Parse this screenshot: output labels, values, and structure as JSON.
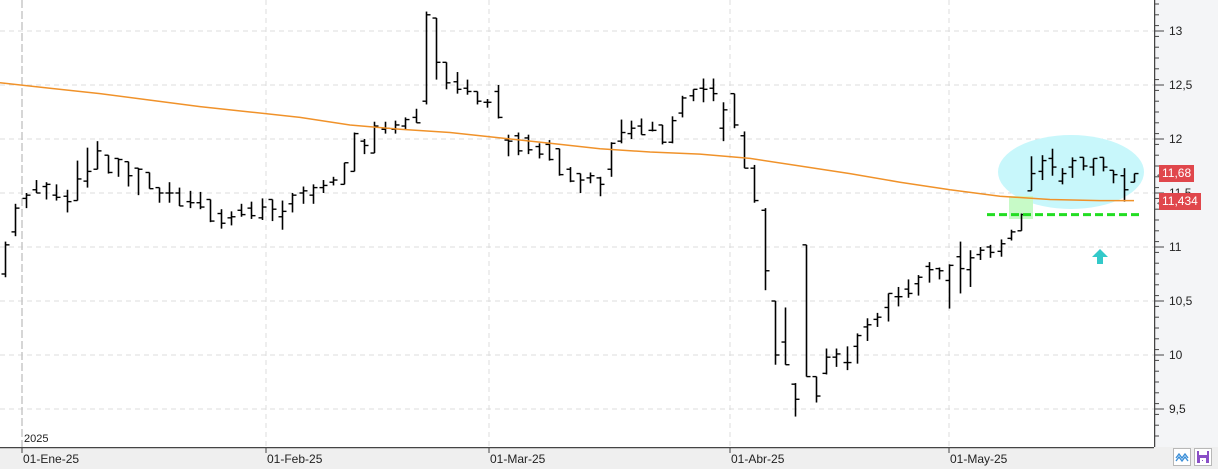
{
  "chart_data": {
    "type": "ohlc",
    "title": "",
    "xlabel": "",
    "ylabel": "",
    "ylim": [
      9.15,
      13.29
    ],
    "y_ticks": [
      "13",
      "12,5",
      "12",
      "11,5",
      "11",
      "10,5",
      "10",
      "9,5"
    ],
    "y_tick_values": [
      13,
      12.5,
      12,
      11.5,
      11,
      10.5,
      10,
      9.5
    ],
    "x_tick_labels": [
      "01-Ene-25",
      "01-Feb-25",
      "01-Mar-25",
      "01-Abr-25",
      "01-May-25"
    ],
    "year_label": "2025",
    "grid": true,
    "last_price_label": "11,68",
    "moving_average_label": "11,434",
    "support_line_level": 11.3,
    "series": [
      {
        "name": "price",
        "bars": [
          {
            "o": 10.75,
            "h": 11.05,
            "l": 10.72,
            "c": 11.02
          },
          {
            "o": 11.14,
            "h": 11.4,
            "l": 11.1,
            "c": 11.36
          },
          {
            "o": 11.45,
            "h": 11.5,
            "l": 11.36,
            "c": 11.48
          },
          {
            "o": 11.53,
            "h": 11.62,
            "l": 11.5,
            "c": 11.5
          },
          {
            "o": 11.56,
            "h": 11.6,
            "l": 11.44,
            "c": 11.58
          },
          {
            "o": 11.48,
            "h": 11.58,
            "l": 11.43,
            "c": 11.46
          },
          {
            "o": 11.47,
            "h": 11.53,
            "l": 11.32,
            "c": 11.42
          },
          {
            "o": 11.43,
            "h": 11.8,
            "l": 11.44,
            "c": 11.63
          },
          {
            "o": 11.61,
            "h": 11.92,
            "l": 11.55,
            "c": 11.7
          },
          {
            "o": 11.72,
            "h": 11.98,
            "l": 11.75,
            "c": 11.89
          },
          {
            "o": 11.85,
            "h": 11.85,
            "l": 11.68,
            "c": 11.69
          },
          {
            "o": 11.82,
            "h": 11.82,
            "l": 11.65,
            "c": 11.81
          },
          {
            "o": 11.79,
            "h": 11.79,
            "l": 11.56,
            "c": 11.66
          },
          {
            "o": 11.73,
            "h": 11.73,
            "l": 11.48,
            "c": 11.72
          },
          {
            "o": 11.69,
            "h": 11.69,
            "l": 11.6,
            "c": 11.54
          },
          {
            "o": 11.55,
            "h": 11.55,
            "l": 11.41,
            "c": 11.5
          },
          {
            "o": 11.5,
            "h": 11.6,
            "l": 11.41,
            "c": 11.5
          },
          {
            "o": 11.5,
            "h": 11.55,
            "l": 11.38,
            "c": 11.38
          },
          {
            "o": 11.42,
            "h": 11.52,
            "l": 11.36,
            "c": 11.41
          },
          {
            "o": 11.41,
            "h": 11.51,
            "l": 11.35,
            "c": 11.37
          },
          {
            "o": 11.44,
            "h": 11.44,
            "l": 11.23,
            "c": 11.24
          },
          {
            "o": 11.31,
            "h": 11.35,
            "l": 11.17,
            "c": 11.22
          },
          {
            "o": 11.27,
            "h": 11.33,
            "l": 11.2,
            "c": 11.28
          },
          {
            "o": 11.34,
            "h": 11.4,
            "l": 11.28,
            "c": 11.3
          },
          {
            "o": 11.36,
            "h": 11.42,
            "l": 11.26,
            "c": 11.29
          },
          {
            "o": 11.27,
            "h": 11.45,
            "l": 11.25,
            "c": 11.37
          },
          {
            "o": 11.44,
            "h": 11.43,
            "l": 11.24,
            "c": 11.35
          },
          {
            "o": 11.28,
            "h": 11.43,
            "l": 11.16,
            "c": 11.33
          },
          {
            "o": 11.4,
            "h": 11.5,
            "l": 11.32,
            "c": 11.48
          },
          {
            "o": 11.5,
            "h": 11.56,
            "l": 11.4,
            "c": 11.52
          },
          {
            "o": 11.48,
            "h": 11.58,
            "l": 11.4,
            "c": 11.55
          },
          {
            "o": 11.55,
            "h": 11.62,
            "l": 11.5,
            "c": 11.57
          },
          {
            "o": 11.6,
            "h": 11.65,
            "l": 11.57,
            "c": 11.62
          },
          {
            "o": 11.58,
            "h": 11.78,
            "l": 11.6,
            "c": 11.78
          },
          {
            "o": 11.7,
            "h": 12.06,
            "l": 11.77,
            "c": 12.05
          },
          {
            "o": 11.98,
            "h": 12.0,
            "l": 11.86,
            "c": 11.94
          },
          {
            "o": 11.87,
            "h": 12.16,
            "l": 11.88,
            "c": 12.12
          },
          {
            "o": 12.09,
            "h": 12.16,
            "l": 12.05,
            "c": 12.1
          },
          {
            "o": 12.09,
            "h": 12.17,
            "l": 12.05,
            "c": 12.13
          },
          {
            "o": 12.12,
            "h": 12.2,
            "l": 12.09,
            "c": 12.18
          },
          {
            "o": 12.2,
            "h": 12.2,
            "l": 12.28,
            "c": 12.15
          },
          {
            "o": 12.35,
            "h": 13.18,
            "l": 12.32,
            "c": 13.15
          },
          {
            "o": 13.12,
            "h": 13.12,
            "l": 12.55,
            "c": 12.71
          },
          {
            "o": 12.71,
            "h": 12.71,
            "l": 12.46,
            "c": 12.52
          },
          {
            "o": 12.53,
            "h": 12.62,
            "l": 12.42,
            "c": 12.46
          },
          {
            "o": 12.47,
            "h": 12.55,
            "l": 12.41,
            "c": 12.44
          },
          {
            "o": 12.44,
            "h": 12.44,
            "l": 12.32,
            "c": 12.35
          },
          {
            "o": 12.34,
            "h": 12.37,
            "l": 12.29,
            "c": 12.34
          },
          {
            "o": 12.44,
            "h": 12.5,
            "l": 12.19,
            "c": 12.2
          },
          {
            "o": 11.99,
            "h": 12.04,
            "l": 11.84,
            "c": 11.98
          },
          {
            "o": 12.03,
            "h": 12.06,
            "l": 11.85,
            "c": 11.89
          },
          {
            "o": 12.01,
            "h": 12.04,
            "l": 11.86,
            "c": 11.9
          },
          {
            "o": 11.93,
            "h": 11.96,
            "l": 11.82,
            "c": 11.86
          },
          {
            "o": 11.95,
            "h": 11.99,
            "l": 11.8,
            "c": 11.81
          },
          {
            "o": 11.91,
            "h": 11.91,
            "l": 11.66,
            "c": 11.67
          },
          {
            "o": 11.72,
            "h": 11.74,
            "l": 11.6,
            "c": 11.61
          },
          {
            "o": 11.68,
            "h": 11.68,
            "l": 11.5,
            "c": 11.62
          },
          {
            "o": 11.64,
            "h": 11.69,
            "l": 11.59,
            "c": 11.66
          },
          {
            "o": 11.64,
            "h": 11.65,
            "l": 11.47,
            "c": 11.58
          },
          {
            "o": 11.72,
            "h": 11.97,
            "l": 11.65,
            "c": 11.96
          },
          {
            "o": 11.98,
            "h": 12.18,
            "l": 11.96,
            "c": 12.06
          },
          {
            "o": 12.05,
            "h": 12.17,
            "l": 12.0,
            "c": 12.1
          },
          {
            "o": 12.12,
            "h": 12.19,
            "l": 12.05,
            "c": 12.04
          },
          {
            "o": 12.08,
            "h": 12.16,
            "l": 12.07,
            "c": 12.08
          },
          {
            "o": 12.13,
            "h": 12.13,
            "l": 11.95,
            "c": 11.97
          },
          {
            "o": 11.97,
            "h": 12.21,
            "l": 11.96,
            "c": 12.17
          },
          {
            "o": 12.24,
            "h": 12.4,
            "l": 12.2,
            "c": 12.38
          },
          {
            "o": 12.4,
            "h": 12.45,
            "l": 12.35,
            "c": 12.46
          },
          {
            "o": 12.47,
            "h": 12.56,
            "l": 12.34,
            "c": 12.46
          },
          {
            "o": 12.47,
            "h": 12.56,
            "l": 12.35,
            "c": 12.42
          },
          {
            "o": 12.1,
            "h": 12.34,
            "l": 11.98,
            "c": 12.27
          },
          {
            "o": 12.42,
            "h": 12.42,
            "l": 12.1,
            "c": 12.13
          },
          {
            "o": 12.03,
            "h": 12.07,
            "l": 11.75,
            "c": 11.73
          },
          {
            "o": 11.73,
            "h": 11.76,
            "l": 11.41,
            "c": 11.43
          },
          {
            "o": 11.34,
            "h": 11.36,
            "l": 10.6,
            "c": 10.78
          },
          {
            "o": 10.5,
            "h": 10.5,
            "l": 9.91,
            "c": 10.0
          },
          {
            "o": 10.12,
            "h": 10.44,
            "l": 9.91,
            "c": 9.91
          },
          {
            "o": 9.73,
            "h": 9.74,
            "l": 9.43,
            "c": 9.59
          },
          {
            "o": 11.02,
            "h": 11.02,
            "l": 9.8,
            "c": 9.8
          },
          {
            "o": 9.8,
            "h": 9.8,
            "l": 9.56,
            "c": 9.62
          },
          {
            "o": 9.83,
            "h": 10.06,
            "l": 9.82,
            "c": 9.98
          },
          {
            "o": 9.98,
            "h": 10.06,
            "l": 9.89,
            "c": 10.01
          },
          {
            "o": 9.93,
            "h": 10.08,
            "l": 9.86,
            "c": 9.93
          },
          {
            "o": 10.08,
            "h": 10.2,
            "l": 9.92,
            "c": 10.18
          },
          {
            "o": 10.26,
            "h": 10.34,
            "l": 10.13,
            "c": 10.28
          },
          {
            "o": 10.33,
            "h": 10.39,
            "l": 10.26,
            "c": 10.35
          },
          {
            "o": 10.44,
            "h": 10.49,
            "l": 10.31,
            "c": 10.57
          },
          {
            "o": 10.54,
            "h": 10.63,
            "l": 10.45,
            "c": 10.54
          },
          {
            "o": 10.61,
            "h": 10.7,
            "l": 10.53,
            "c": 10.57
          },
          {
            "o": 10.66,
            "h": 10.74,
            "l": 10.55,
            "c": 10.72
          },
          {
            "o": 10.82,
            "h": 10.86,
            "l": 10.67,
            "c": 10.79
          },
          {
            "o": 10.8,
            "h": 10.81,
            "l": 10.7,
            "c": 10.78
          },
          {
            "o": 10.69,
            "h": 10.84,
            "l": 10.43,
            "c": 10.83
          },
          {
            "o": 10.91,
            "h": 11.05,
            "l": 10.57,
            "c": 10.8
          },
          {
            "o": 10.79,
            "h": 10.97,
            "l": 10.63,
            "c": 10.9
          },
          {
            "o": 10.93,
            "h": 11.0,
            "l": 10.88,
            "c": 10.97
          },
          {
            "o": 11.0,
            "h": 11.02,
            "l": 10.9,
            "c": 10.95
          },
          {
            "o": 10.96,
            "h": 11.07,
            "l": 10.91,
            "c": 11.03
          },
          {
            "o": 11.08,
            "h": 11.16,
            "l": 11.06,
            "c": 11.14
          },
          {
            "o": 11.15,
            "h": 11.31,
            "l": 11.16,
            "c": 11.3
          },
          {
            "o": 11.52,
            "h": 11.84,
            "l": 11.52,
            "c": 11.68
          },
          {
            "o": 11.7,
            "h": 11.85,
            "l": 11.62,
            "c": 11.8
          },
          {
            "o": 11.82,
            "h": 11.91,
            "l": 11.66,
            "c": 11.74
          },
          {
            "o": 11.61,
            "h": 11.73,
            "l": 11.58,
            "c": 11.68
          },
          {
            "o": 11.74,
            "h": 11.83,
            "l": 11.64,
            "c": 11.8
          },
          {
            "o": 11.83,
            "h": 11.82,
            "l": 11.71,
            "c": 11.75
          },
          {
            "o": 11.74,
            "h": 11.82,
            "l": 11.66,
            "c": 11.82
          },
          {
            "o": 11.83,
            "h": 11.79,
            "l": 11.7,
            "c": 11.74
          },
          {
            "o": 11.71,
            "h": 11.71,
            "l": 11.59,
            "c": 11.67
          },
          {
            "o": 11.66,
            "h": 11.73,
            "l": 11.42,
            "c": 11.53
          },
          {
            "o": 11.6,
            "h": 11.68,
            "l": 11.6,
            "c": 11.68
          }
        ]
      },
      {
        "name": "moving_average",
        "color": "#f0922a",
        "points": [
          [
            0,
            12.52
          ],
          [
            50,
            12.47
          ],
          [
            100,
            12.42
          ],
          [
            150,
            12.36
          ],
          [
            200,
            12.3
          ],
          [
            250,
            12.25
          ],
          [
            300,
            12.2
          ],
          [
            350,
            12.13
          ],
          [
            400,
            12.09
          ],
          [
            450,
            12.06
          ],
          [
            500,
            12.01
          ],
          [
            550,
            11.96
          ],
          [
            600,
            11.91
          ],
          [
            650,
            11.88
          ],
          [
            700,
            11.86
          ],
          [
            750,
            11.82
          ],
          [
            800,
            11.75
          ],
          [
            850,
            11.68
          ],
          [
            900,
            11.6
          ],
          [
            950,
            11.53
          ],
          [
            1000,
            11.47
          ],
          [
            1050,
            11.44
          ],
          [
            1100,
            11.43
          ],
          [
            1134,
            11.43
          ]
        ]
      }
    ]
  },
  "time_axis": {
    "labels": [
      "01-Ene-25",
      "01-Feb-25",
      "01-Mar-25",
      "01-Abr-25",
      "01-May-25"
    ],
    "year": "2025"
  },
  "price_axis": {
    "ticks": [
      "13",
      "12,5",
      "12",
      "11,5",
      "11",
      "10,5",
      "10",
      "9,5"
    ]
  },
  "badges": {
    "last_price": "11,68",
    "moving_average": "11,434"
  },
  "annotations": {
    "ellipse_color": "#c8f7fb",
    "highlight_box_color": "#c7fac7",
    "support_line_color": "#22dd22",
    "arrow_color": "#33c9c9"
  },
  "toolbar": {
    "indicator_icon": "wave-icon",
    "save_icon": "floppy-disk-icon"
  }
}
